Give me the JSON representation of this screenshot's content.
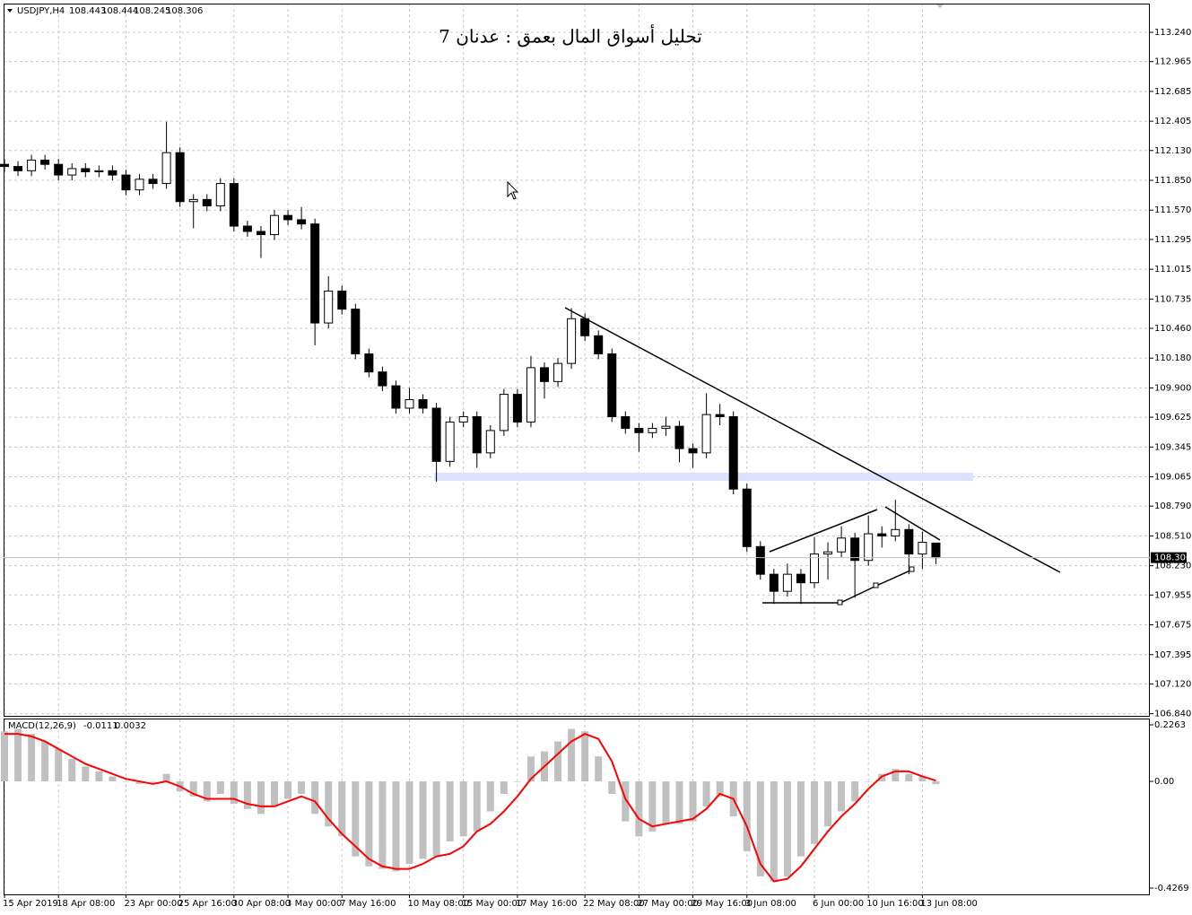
{
  "chart_data": [
    {
      "type": "candlestick",
      "symbol": "USDJPY,H4",
      "title": "تحليل أسواق المال بعمق : عدنان 7",
      "up_color": "#ffffff",
      "down_color": "#000000",
      "line_color": "#000000",
      "grid": true,
      "categories": [
        "15 Apr 2019",
        null,
        null,
        null,
        "18 Apr 08:00",
        null,
        null,
        null,
        null,
        "23 Apr 00:00",
        null,
        null,
        null,
        "25 Apr 16:00",
        null,
        null,
        null,
        "30 Apr 08:00",
        null,
        null,
        null,
        "3 May 00:00",
        null,
        null,
        null,
        "7 May 16:00",
        null,
        null,
        null,
        null,
        "10 May 08:00",
        null,
        null,
        null,
        "15 May 00:00",
        null,
        null,
        null,
        "17 May 16:00",
        null,
        null,
        null,
        null,
        "22 May 08:00",
        null,
        null,
        null,
        "27 May 00:00",
        null,
        null,
        null,
        "29 May 16:00",
        null,
        null,
        null,
        "3 Jun 08:00",
        null,
        null,
        null,
        null,
        "6 Jun 00:00",
        null,
        null,
        null,
        "10 Jun 16:00",
        null,
        null,
        null,
        "13 Jun 08:00",
        null
      ],
      "open": [
        112.0,
        111.98,
        111.94,
        112.04,
        112.0,
        111.9,
        111.96,
        111.93,
        111.94,
        111.9,
        111.76,
        111.86,
        111.82,
        112.11,
        111.65,
        111.67,
        111.61,
        111.82,
        111.42,
        111.37,
        111.34,
        111.52,
        111.48,
        111.44,
        110.51,
        110.81,
        110.64,
        110.22,
        110.05,
        109.92,
        109.71,
        109.79,
        109.71,
        109.21,
        109.58,
        109.63,
        109.29,
        109.5,
        109.84,
        109.58,
        110.09,
        109.96,
        110.13,
        110.55,
        110.39,
        110.22,
        109.63,
        109.52,
        109.48,
        109.52,
        109.54,
        109.33,
        109.29,
        109.65,
        109.63,
        108.95,
        108.41,
        108.15,
        107.99,
        108.15,
        108.07,
        108.34,
        108.36,
        108.49,
        108.28,
        108.53,
        108.51,
        108.57,
        108.34,
        108.443
      ],
      "high": [
        112.05,
        112.03,
        112.09,
        112.09,
        112.05,
        112.01,
        112.01,
        111.99,
        111.99,
        111.95,
        111.91,
        111.91,
        112.4,
        112.16,
        111.72,
        111.72,
        111.87,
        111.87,
        111.47,
        111.42,
        111.57,
        111.57,
        111.6,
        111.49,
        110.95,
        110.86,
        110.69,
        110.27,
        110.1,
        109.97,
        109.9,
        109.84,
        109.76,
        109.63,
        109.68,
        109.68,
        109.55,
        109.89,
        109.89,
        110.2,
        110.14,
        110.18,
        110.65,
        110.6,
        110.44,
        110.27,
        109.68,
        109.57,
        109.57,
        109.63,
        109.59,
        109.38,
        109.85,
        109.75,
        109.68,
        109.0,
        108.46,
        108.2,
        108.25,
        108.2,
        108.5,
        108.45,
        108.6,
        108.54,
        108.7,
        108.6,
        108.85,
        108.62,
        108.55,
        108.444
      ],
      "low": [
        111.93,
        111.89,
        111.89,
        111.95,
        111.85,
        111.85,
        111.88,
        111.88,
        111.85,
        111.71,
        111.71,
        111.77,
        111.77,
        111.6,
        111.4,
        111.56,
        111.56,
        111.37,
        111.32,
        111.12,
        111.29,
        111.43,
        111.39,
        110.3,
        110.46,
        110.59,
        110.17,
        110.0,
        109.87,
        109.66,
        109.66,
        109.66,
        109.02,
        109.16,
        109.53,
        109.15,
        109.24,
        109.45,
        109.53,
        109.53,
        109.8,
        109.91,
        110.08,
        110.34,
        110.17,
        109.58,
        109.47,
        109.3,
        109.43,
        109.45,
        109.2,
        109.15,
        109.24,
        109.55,
        108.9,
        108.36,
        108.1,
        107.87,
        107.94,
        107.87,
        108.02,
        108.1,
        108.31,
        107.93,
        108.23,
        108.4,
        108.46,
        108.15,
        108.2,
        108.245
      ],
      "close": [
        111.98,
        111.94,
        112.04,
        112.0,
        111.9,
        111.96,
        111.93,
        111.94,
        111.9,
        111.76,
        111.86,
        111.82,
        112.11,
        111.65,
        111.67,
        111.61,
        111.82,
        111.42,
        111.37,
        111.34,
        111.52,
        111.48,
        111.44,
        110.51,
        110.81,
        110.64,
        110.22,
        110.05,
        109.92,
        109.71,
        109.79,
        109.71,
        109.21,
        109.58,
        109.63,
        109.29,
        109.5,
        109.84,
        109.58,
        110.09,
        109.96,
        110.13,
        110.55,
        110.39,
        110.22,
        109.63,
        109.52,
        109.48,
        109.52,
        109.54,
        109.33,
        109.29,
        109.65,
        109.63,
        108.95,
        108.41,
        108.15,
        107.99,
        108.15,
        108.07,
        108.34,
        108.36,
        108.49,
        108.28,
        108.53,
        108.51,
        108.57,
        108.34,
        108.45,
        108.306
      ],
      "ylim": [
        106.82,
        113.51
      ],
      "yticks": [
        {
          "value": 113.24,
          "label": "113.240"
        },
        {
          "value": 112.965,
          "label": "112.965"
        },
        {
          "value": 112.685,
          "label": "112.685"
        },
        {
          "value": 112.405,
          "label": "112.405"
        },
        {
          "value": 112.13,
          "label": "112.130"
        },
        {
          "value": 111.85,
          "label": "111.850"
        },
        {
          "value": 111.57,
          "label": "111.570"
        },
        {
          "value": 111.295,
          "label": "111.295"
        },
        {
          "value": 111.015,
          "label": "111.015"
        },
        {
          "value": 110.735,
          "label": "110.735"
        },
        {
          "value": 110.46,
          "label": "110.460"
        },
        {
          "value": 110.18,
          "label": "110.180"
        },
        {
          "value": 109.9,
          "label": "109.900"
        },
        {
          "value": 109.625,
          "label": "109.625"
        },
        {
          "value": 109.345,
          "label": "109.345"
        },
        {
          "value": 109.065,
          "label": "109.065"
        },
        {
          "value": 108.79,
          "label": "108.790"
        },
        {
          "value": 108.51,
          "label": "108.510"
        },
        {
          "value": 108.23,
          "label": "108.230"
        },
        {
          "value": 107.955,
          "label": "107.955"
        },
        {
          "value": 107.675,
          "label": "107.675"
        },
        {
          "value": 107.395,
          "label": "107.395"
        },
        {
          "value": 107.12,
          "label": "107.120"
        },
        {
          "value": 106.84,
          "label": "106.840"
        }
      ]
    },
    {
      "type": "macd",
      "title": "MACD(12,26,9)",
      "histogram_color": "#c0c0c0",
      "signal_color": "#ff0000",
      "histogram": [
        0.2,
        0.21,
        0.19,
        0.16,
        0.13,
        0.09,
        0.06,
        0.04,
        0.02,
        0.0,
        -0.01,
        0.0,
        0.03,
        -0.04,
        -0.06,
        -0.08,
        -0.05,
        -0.09,
        -0.11,
        -0.13,
        -0.1,
        -0.07,
        -0.05,
        -0.13,
        -0.18,
        -0.22,
        -0.3,
        -0.34,
        -0.35,
        -0.36,
        -0.33,
        -0.31,
        -0.3,
        -0.24,
        -0.22,
        -0.2,
        -0.12,
        -0.05,
        0.0,
        0.1,
        0.12,
        0.16,
        0.21,
        0.2,
        0.1,
        -0.05,
        -0.16,
        -0.22,
        -0.2,
        -0.17,
        -0.17,
        -0.16,
        -0.1,
        -0.06,
        -0.14,
        -0.28,
        -0.38,
        -0.4,
        -0.38,
        -0.3,
        -0.25,
        -0.18,
        -0.12,
        -0.08,
        0.0,
        0.03,
        0.05,
        0.03,
        0.02,
        -0.0111
      ],
      "signal": [
        0.19,
        0.19,
        0.18,
        0.16,
        0.13,
        0.1,
        0.07,
        0.05,
        0.03,
        0.01,
        0.0,
        -0.01,
        0.0,
        -0.02,
        -0.05,
        -0.07,
        -0.07,
        -0.07,
        -0.09,
        -0.1,
        -0.1,
        -0.08,
        -0.06,
        -0.08,
        -0.15,
        -0.21,
        -0.26,
        -0.31,
        -0.34,
        -0.35,
        -0.35,
        -0.33,
        -0.3,
        -0.29,
        -0.26,
        -0.2,
        -0.17,
        -0.12,
        -0.06,
        0.01,
        0.06,
        0.11,
        0.16,
        0.19,
        0.17,
        0.08,
        -0.07,
        -0.15,
        -0.18,
        -0.17,
        -0.16,
        -0.15,
        -0.11,
        -0.05,
        -0.07,
        -0.18,
        -0.33,
        -0.4,
        -0.39,
        -0.34,
        -0.27,
        -0.2,
        -0.14,
        -0.09,
        -0.03,
        0.02,
        0.04,
        0.04,
        0.02,
        0.0032
      ],
      "ylim": [
        -0.452,
        0.2514
      ],
      "yticks": [
        0.2263,
        {
          "value": 0,
          "label": "0.00"
        },
        -0.4269
      ]
    }
  ]
}
